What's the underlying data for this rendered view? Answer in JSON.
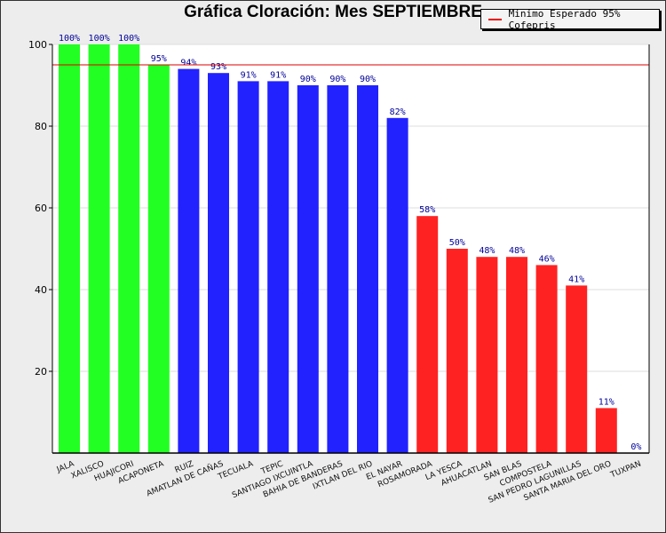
{
  "chart_data": {
    "type": "bar",
    "title": "Gráfica Cloración: Mes SEPTIEMBRE",
    "categories": [
      "JALA",
      "XALISCO",
      "HUAJICORI",
      "ACAPONETA",
      "RUIZ",
      "AMATLAN DE CAÑAS",
      "TECUALA",
      "TEPIC",
      "SANTIAGO IXCUINTLA",
      "BAHIA DE BANDERAS",
      "IXTLAN DEL RIO",
      "EL NAYAR",
      "ROSAMORADA",
      "LA YESCA",
      "AHUACATLAN",
      "SAN BLAS",
      "COMPOSTELA",
      "SAN PEDRO LAGUNILLAS",
      "SANTA MARIA DEL ORO",
      "TUXPAN"
    ],
    "values": [
      100,
      100,
      100,
      95,
      94,
      93,
      91,
      91,
      90,
      90,
      90,
      82,
      58,
      50,
      48,
      48,
      46,
      41,
      11,
      0
    ],
    "data_labels": [
      "100%",
      "100%",
      "100%",
      "95%",
      "94%",
      "93%",
      "91%",
      "91%",
      "90%",
      "90%",
      "90%",
      "82%",
      "58%",
      "50%",
      "48%",
      "48%",
      "46%",
      "41%",
      "11%",
      "0%"
    ],
    "colors": [
      "#22ff22",
      "#22ff22",
      "#22ff22",
      "#22ff22",
      "#2222ff",
      "#2222ff",
      "#2222ff",
      "#2222ff",
      "#2222ff",
      "#2222ff",
      "#2222ff",
      "#2222ff",
      "#ff2222",
      "#ff2222",
      "#ff2222",
      "#ff2222",
      "#ff2222",
      "#ff2222",
      "#ff2222",
      "#ff2222"
    ],
    "ylim": [
      0,
      104
    ],
    "yticks": [
      20,
      40,
      60,
      80,
      100
    ],
    "grid": true,
    "reference_line": {
      "value": 95,
      "label": "Minimo Esperado 95% Cofepris",
      "color": "#dd0000"
    },
    "legend_position": "top-right"
  }
}
